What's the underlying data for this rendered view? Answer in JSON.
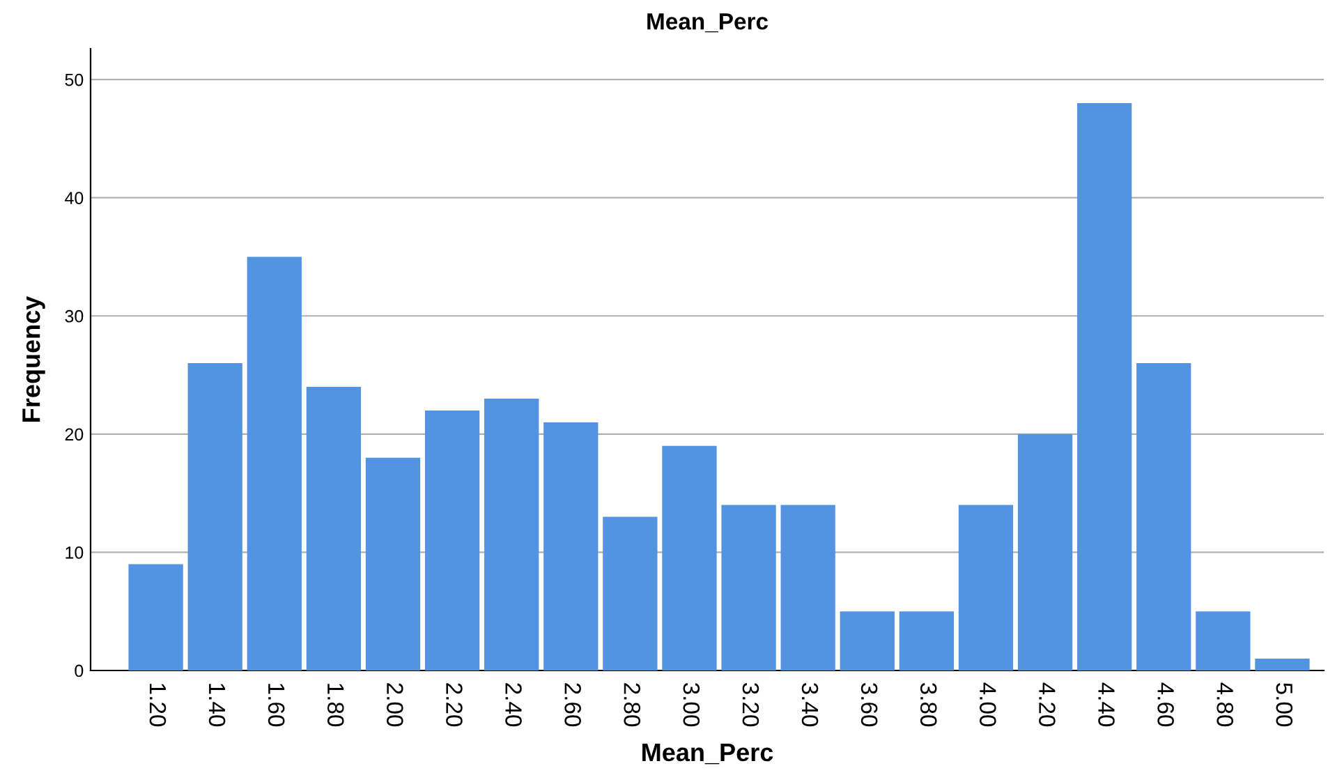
{
  "chart_data": {
    "type": "bar",
    "title": "Mean_Perc",
    "xlabel": "Mean_Perc",
    "ylabel": "Frequency",
    "categories": [
      "1.20",
      "1.40",
      "1.60",
      "1.80",
      "2.00",
      "2.20",
      "2.40",
      "2.60",
      "2.80",
      "3.00",
      "3.20",
      "3.40",
      "3.60",
      "3.80",
      "4.00",
      "4.20",
      "4.40",
      "4.60",
      "4.80",
      "5.00"
    ],
    "values": [
      9,
      26,
      35,
      24,
      18,
      22,
      23,
      21,
      13,
      19,
      14,
      14,
      5,
      5,
      14,
      20,
      48,
      26,
      5,
      1
    ],
    "color": "#5294e2",
    "ylim": [
      0,
      52.6
    ],
    "yticks": [
      0,
      10,
      20,
      30,
      40,
      50
    ],
    "grid": "y"
  }
}
